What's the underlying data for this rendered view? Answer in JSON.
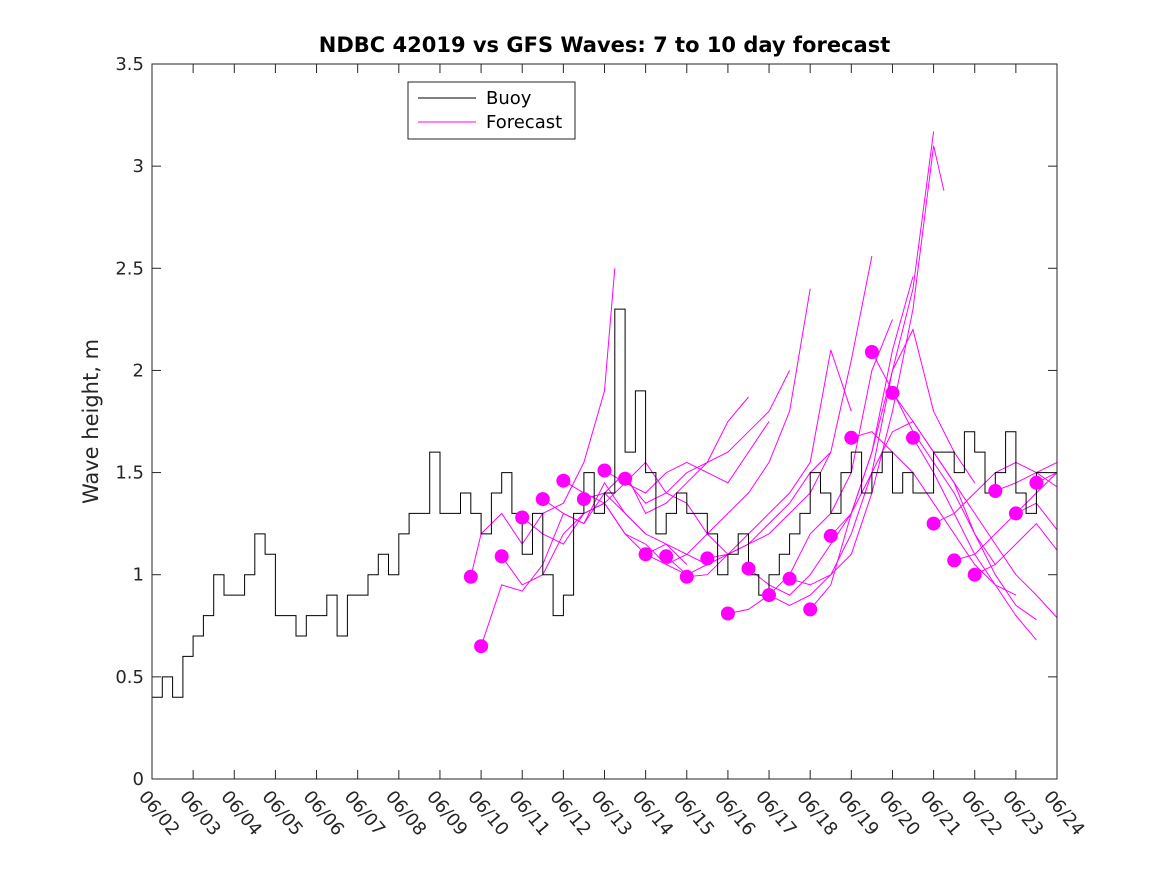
{
  "chart_data": {
    "type": "line",
    "title": "NDBC 42019 vs GFS Waves: 7 to 10 day forecast",
    "xlabel": "",
    "ylabel": "Wave height, m",
    "ylim": [
      0,
      3.5
    ],
    "yticks": [
      0,
      0.5,
      1,
      1.5,
      2,
      2.5,
      3,
      3.5
    ],
    "ytick_labels": [
      "0",
      "0.5",
      "1",
      "1.5",
      "2",
      "2.5",
      "3",
      "3.5"
    ],
    "xlim": [
      "06/02",
      "06/24"
    ],
    "xtick_labels": [
      "06/02",
      "06/03",
      "06/04",
      "06/05",
      "06/06",
      "06/07",
      "06/08",
      "06/09",
      "06/10",
      "06/11",
      "06/12",
      "06/13",
      "06/14",
      "06/15",
      "06/16",
      "06/17",
      "06/18",
      "06/19",
      "06/20",
      "06/21",
      "06/22",
      "06/23",
      "06/24"
    ],
    "grid": false,
    "legend": {
      "placement": "top-left",
      "entries": [
        "Buoy",
        "Forecast"
      ]
    },
    "colors": {
      "buoy": "#000000",
      "forecast": "#ff00ff"
    },
    "buoy": {
      "name": "Buoy",
      "x": [
        "06/02 00:00",
        "06/02 06:00",
        "06/02 12:00",
        "06/02 18:00",
        "06/03 00:00",
        "06/03 06:00",
        "06/03 12:00",
        "06/03 18:00",
        "06/04 00:00",
        "06/04 06:00",
        "06/04 12:00",
        "06/04 18:00",
        "06/05 00:00",
        "06/05 06:00",
        "06/05 12:00",
        "06/05 18:00",
        "06/06 00:00",
        "06/06 06:00",
        "06/06 12:00",
        "06/06 18:00",
        "06/07 00:00",
        "06/07 06:00",
        "06/07 12:00",
        "06/07 18:00",
        "06/08 00:00",
        "06/08 06:00",
        "06/08 12:00",
        "06/08 18:00",
        "06/09 00:00",
        "06/09 06:00",
        "06/09 12:00",
        "06/09 18:00",
        "06/10 00:00",
        "06/10 06:00",
        "06/10 12:00",
        "06/10 18:00",
        "06/11 00:00",
        "06/11 06:00",
        "06/11 12:00",
        "06/11 18:00",
        "06/12 00:00",
        "06/12 06:00",
        "06/12 12:00",
        "06/12 18:00",
        "06/13 00:00",
        "06/13 06:00",
        "06/13 12:00",
        "06/13 18:00",
        "06/14 00:00",
        "06/14 06:00",
        "06/14 12:00",
        "06/14 18:00",
        "06/15 00:00",
        "06/15 06:00",
        "06/15 12:00",
        "06/15 18:00",
        "06/16 00:00",
        "06/16 06:00",
        "06/16 12:00",
        "06/16 18:00",
        "06/17 00:00",
        "06/17 06:00",
        "06/17 12:00",
        "06/17 18:00",
        "06/18 00:00",
        "06/18 06:00",
        "06/18 12:00",
        "06/18 18:00",
        "06/19 00:00",
        "06/19 06:00",
        "06/19 12:00",
        "06/19 18:00",
        "06/20 00:00",
        "06/20 06:00",
        "06/20 12:00",
        "06/20 18:00",
        "06/21 00:00",
        "06/21 06:00",
        "06/21 12:00",
        "06/21 18:00",
        "06/22 00:00",
        "06/22 06:00",
        "06/22 12:00",
        "06/22 18:00",
        "06/23 00:00",
        "06/23 06:00",
        "06/23 12:00",
        "06/23 18:00",
        "06/24 00:00"
      ],
      "y": [
        0.4,
        0.5,
        0.4,
        0.6,
        0.7,
        0.8,
        1.0,
        0.9,
        0.9,
        1.0,
        1.2,
        1.1,
        0.8,
        0.8,
        0.7,
        0.8,
        0.8,
        0.9,
        0.7,
        0.9,
        0.9,
        1.0,
        1.1,
        1.0,
        1.2,
        1.3,
        1.3,
        1.6,
        1.3,
        1.3,
        1.4,
        1.3,
        1.2,
        1.4,
        1.5,
        1.3,
        1.1,
        1.3,
        1.0,
        0.8,
        0.9,
        1.3,
        1.5,
        1.3,
        1.4,
        2.3,
        1.6,
        1.9,
        1.5,
        1.2,
        1.3,
        1.4,
        1.3,
        1.3,
        1.2,
        1.0,
        1.1,
        1.2,
        1.0,
        0.9,
        1.0,
        1.1,
        1.2,
        1.3,
        1.5,
        1.4,
        1.3,
        1.5,
        1.6,
        1.4,
        1.5,
        1.6,
        1.4,
        1.5,
        1.4,
        1.4,
        1.6,
        1.6,
        1.5,
        1.7,
        1.6,
        1.4,
        1.5,
        1.7,
        1.4,
        1.3,
        1.5,
        1.5,
        1.5
      ]
    },
    "forecast_runs": [
      {
        "x": [
          "06/09 18:00",
          "06/10 00:00",
          "06/10 12:00",
          "06/11 00:00",
          "06/11 12:00",
          "06/12 00:00",
          "06/12 12:00",
          "06/13 00:00",
          "06/13 06:00"
        ],
        "y": [
          0.99,
          1.2,
          1.3,
          1.15,
          1.3,
          1.35,
          1.55,
          1.9,
          2.5
        ]
      },
      {
        "x": [
          "06/10 00:00",
          "06/10 12:00",
          "06/11 00:00",
          "06/11 12:00",
          "06/12 00:00",
          "06/12 12:00",
          "06/13 00:00",
          "06/13 12:00",
          "06/14 00:00"
        ],
        "y": [
          0.65,
          0.95,
          0.92,
          1.05,
          1.3,
          1.25,
          1.45,
          1.3,
          1.2
        ]
      },
      {
        "x": [
          "06/10 12:00",
          "06/11 00:00",
          "06/11 12:00",
          "06/12 00:00",
          "06/12 12:00",
          "06/13 00:00",
          "06/13 12:00",
          "06/14 00:00",
          "06/14 12:00",
          "06/15 00:00"
        ],
        "y": [
          1.09,
          0.95,
          1.0,
          1.2,
          1.3,
          1.35,
          1.2,
          1.1,
          1.15,
          1.05
        ]
      },
      {
        "x": [
          "06/11 00:00",
          "06/11 12:00",
          "06/12 00:00",
          "06/12 12:00",
          "06/13 00:00",
          "06/13 12:00",
          "06/14 00:00",
          "06/14 12:00",
          "06/15 00:00"
        ],
        "y": [
          1.28,
          1.2,
          1.15,
          1.3,
          1.35,
          1.2,
          1.15,
          1.05,
          1.0
        ]
      },
      {
        "x": [
          "06/11 12:00",
          "06/12 00:00",
          "06/12 12:00",
          "06/13 00:00",
          "06/13 12:00",
          "06/14 00:00",
          "06/14 12:00",
          "06/15 00:00",
          "06/15 12:00"
        ],
        "y": [
          1.37,
          1.3,
          1.25,
          1.4,
          1.3,
          1.2,
          1.15,
          1.1,
          1.05
        ]
      },
      {
        "x": [
          "06/12 00:00",
          "06/12 12:00",
          "06/13 00:00",
          "06/13 12:00",
          "06/14 00:00",
          "06/14 12:00",
          "06/15 00:00",
          "06/15 12:00",
          "06/16 00:00"
        ],
        "y": [
          1.46,
          1.4,
          1.35,
          1.45,
          1.55,
          1.4,
          1.35,
          1.2,
          1.1
        ]
      },
      {
        "x": [
          "06/12 12:00",
          "06/13 00:00",
          "06/13 12:00",
          "06/14 00:00",
          "06/14 12:00",
          "06/15 00:00",
          "06/15 12:00",
          "06/16 00:00",
          "06/16 12:00"
        ],
        "y": [
          1.37,
          1.4,
          1.5,
          1.3,
          1.35,
          1.45,
          1.55,
          1.75,
          1.87
        ]
      },
      {
        "x": [
          "06/13 00:00",
          "06/13 12:00",
          "06/14 00:00",
          "06/14 12:00",
          "06/15 00:00",
          "06/15 12:00",
          "06/16 00:00",
          "06/16 12:00",
          "06/17 00:00"
        ],
        "y": [
          1.51,
          1.45,
          1.4,
          1.5,
          1.55,
          1.5,
          1.45,
          1.6,
          1.75
        ]
      },
      {
        "x": [
          "06/13 12:00",
          "06/14 00:00",
          "06/14 12:00",
          "06/15 00:00",
          "06/15 12:00",
          "06/16 00:00",
          "06/16 12:00",
          "06/17 00:00",
          "06/17 12:00"
        ],
        "y": [
          1.47,
          1.35,
          1.4,
          1.5,
          1.55,
          1.6,
          1.7,
          1.8,
          2.0
        ]
      },
      {
        "x": [
          "06/14 00:00",
          "06/14 12:00",
          "06/15 00:00",
          "06/15 12:00",
          "06/16 00:00",
          "06/16 12:00",
          "06/17 00:00",
          "06/17 12:00",
          "06/18 00:00"
        ],
        "y": [
          1.1,
          1.05,
          1.1,
          1.2,
          1.3,
          1.4,
          1.55,
          1.8,
          2.4
        ]
      },
      {
        "x": [
          "06/14 12:00",
          "06/15 00:00",
          "06/15 12:00",
          "06/16 00:00",
          "06/16 12:00",
          "06/17 00:00",
          "06/17 12:00",
          "06/18 00:00",
          "06/18 12:00"
        ],
        "y": [
          1.09,
          1.0,
          1.05,
          1.1,
          1.15,
          1.25,
          1.35,
          1.5,
          1.6
        ]
      },
      {
        "x": [
          "06/15 00:00",
          "06/15 12:00",
          "06/16 00:00",
          "06/16 12:00",
          "06/17 00:00",
          "06/17 12:00",
          "06/18 00:00",
          "06/18 12:00",
          "06/19 00:00"
        ],
        "y": [
          0.99,
          1.0,
          1.1,
          1.2,
          1.3,
          1.4,
          1.55,
          2.1,
          1.8
        ]
      },
      {
        "x": [
          "06/15 12:00",
          "06/16 00:00",
          "06/16 12:00",
          "06/17 00:00",
          "06/17 12:00",
          "06/18 00:00",
          "06/18 12:00",
          "06/19 00:00",
          "06/19 12:00"
        ],
        "y": [
          1.08,
          1.1,
          1.15,
          1.2,
          1.3,
          1.4,
          1.6,
          2.05,
          2.56
        ]
      },
      {
        "x": [
          "06/16 00:00",
          "06/16 12:00",
          "06/17 00:00",
          "06/17 12:00",
          "06/18 00:00",
          "06/18 12:00",
          "06/19 00:00",
          "06/19 12:00",
          "06/20 00:00"
        ],
        "y": [
          0.81,
          0.83,
          0.9,
          1.0,
          1.2,
          1.3,
          1.5,
          2.0,
          2.25
        ]
      },
      {
        "x": [
          "06/16 12:00",
          "06/17 00:00",
          "06/17 12:00",
          "06/18 00:00",
          "06/18 12:00",
          "06/19 00:00",
          "06/19 12:00",
          "06/20 00:00",
          "06/20 12:00"
        ],
        "y": [
          1.03,
          0.95,
          0.9,
          1.0,
          1.15,
          1.3,
          1.6,
          2.1,
          2.46
        ]
      },
      {
        "x": [
          "06/17 00:00",
          "06/17 12:00",
          "06/18 00:00",
          "06/18 12:00",
          "06/19 00:00",
          "06/19 12:00",
          "06/20 00:00",
          "06/20 12:00",
          "06/21 00:00"
        ],
        "y": [
          0.9,
          0.85,
          0.9,
          1.0,
          1.2,
          1.5,
          2.0,
          2.4,
          3.17
        ]
      },
      {
        "x": [
          "06/17 12:00",
          "06/18 00:00",
          "06/18 12:00",
          "06/19 00:00",
          "06/19 12:00",
          "06/20 00:00",
          "06/20 12:00",
          "06/21 00:00",
          "06/21 06:00"
        ],
        "y": [
          0.98,
          0.95,
          1.0,
          1.1,
          1.4,
          1.8,
          2.3,
          3.1,
          2.88
        ]
      },
      {
        "x": [
          "06/18 00:00",
          "06/18 12:00",
          "06/19 00:00",
          "06/19 12:00",
          "06/20 00:00",
          "06/20 12:00",
          "06/21 00:00",
          "06/21 12:00",
          "06/22 00:00"
        ],
        "y": [
          0.83,
          0.95,
          1.3,
          1.6,
          2.0,
          2.2,
          1.8,
          1.6,
          1.45
        ]
      },
      {
        "x": [
          "06/18 12:00",
          "06/19 00:00",
          "06/19 12:00",
          "06/20 00:00",
          "06/20 12:00",
          "06/21 00:00",
          "06/21 12:00",
          "06/22 00:00",
          "06/22 12:00"
        ],
        "y": [
          1.19,
          1.3,
          1.5,
          1.7,
          1.75,
          1.6,
          1.45,
          1.2,
          1.05
        ]
      },
      {
        "x": [
          "06/19 00:00",
          "06/19 12:00",
          "06/20 00:00",
          "06/20 12:00",
          "06/21 00:00",
          "06/21 12:00",
          "06/22 00:00",
          "06/22 12:00",
          "06/23 00:00"
        ],
        "y": [
          1.67,
          1.7,
          1.6,
          1.5,
          1.35,
          1.2,
          1.05,
          0.95,
          0.9
        ]
      },
      {
        "x": [
          "06/19 12:00",
          "06/20 00:00",
          "06/20 12:00",
          "06/21 00:00",
          "06/21 12:00",
          "06/22 00:00",
          "06/22 12:00",
          "06/23 00:00",
          "06/23 12:00"
        ],
        "y": [
          2.09,
          1.9,
          1.7,
          1.55,
          1.4,
          1.2,
          1.0,
          0.85,
          0.78
        ]
      },
      {
        "x": [
          "06/20 00:00",
          "06/20 12:00",
          "06/21 00:00",
          "06/21 12:00",
          "06/22 00:00",
          "06/22 12:00",
          "06/23 00:00",
          "06/23 12:00",
          "06/24 00:00"
        ],
        "y": [
          1.89,
          1.75,
          1.6,
          1.45,
          1.3,
          1.15,
          1.0,
          0.9,
          0.79
        ]
      },
      {
        "x": [
          "06/20 12:00",
          "06/21 00:00",
          "06/21 12:00",
          "06/22 00:00",
          "06/22 12:00",
          "06/23 00:00",
          "06/23 12:00"
        ],
        "y": [
          1.67,
          1.5,
          1.3,
          1.1,
          0.95,
          0.8,
          0.68
        ]
      },
      {
        "x": [
          "06/21 00:00",
          "06/21 12:00",
          "06/22 00:00",
          "06/22 12:00",
          "06/23 00:00",
          "06/23 12:00",
          "06/24 00:00"
        ],
        "y": [
          1.25,
          1.3,
          1.4,
          1.5,
          1.55,
          1.5,
          1.43
        ]
      },
      {
        "x": [
          "06/21 12:00",
          "06/22 00:00",
          "06/22 12:00",
          "06/23 00:00",
          "06/23 12:00",
          "06/24 00:00"
        ],
        "y": [
          1.07,
          1.1,
          1.2,
          1.3,
          1.35,
          1.22
        ]
      },
      {
        "x": [
          "06/22 00:00",
          "06/22 12:00",
          "06/23 00:00",
          "06/23 12:00",
          "06/24 00:00"
        ],
        "y": [
          1.0,
          1.05,
          1.15,
          1.25,
          1.12
        ]
      },
      {
        "x": [
          "06/22 12:00",
          "06/23 00:00",
          "06/23 12:00",
          "06/24 00:00"
        ],
        "y": [
          1.41,
          1.45,
          1.5,
          1.55
        ]
      },
      {
        "x": [
          "06/23 00:00",
          "06/23 12:00",
          "06/24 00:00"
        ],
        "y": [
          1.3,
          1.4,
          1.5
        ]
      },
      {
        "x": [
          "06/23 12:00",
          "06/24 00:00"
        ],
        "y": [
          1.45,
          1.5
        ]
      }
    ],
    "forecast_points": {
      "name": "Forecast",
      "x": [
        "06/09 18:00",
        "06/10 00:00",
        "06/10 12:00",
        "06/11 00:00",
        "06/11 12:00",
        "06/12 00:00",
        "06/12 12:00",
        "06/13 00:00",
        "06/13 12:00",
        "06/14 00:00",
        "06/14 12:00",
        "06/15 00:00",
        "06/15 12:00",
        "06/16 00:00",
        "06/16 12:00",
        "06/17 00:00",
        "06/17 12:00",
        "06/18 00:00",
        "06/18 12:00",
        "06/19 00:00",
        "06/19 12:00",
        "06/20 00:00",
        "06/20 12:00",
        "06/21 00:00",
        "06/21 12:00",
        "06/22 00:00",
        "06/22 12:00",
        "06/23 00:00",
        "06/23 12:00"
      ],
      "y": [
        0.99,
        0.65,
        1.09,
        1.28,
        1.37,
        1.46,
        1.37,
        1.51,
        1.47,
        1.1,
        1.09,
        0.99,
        1.08,
        0.81,
        1.03,
        0.9,
        0.98,
        0.83,
        1.19,
        1.67,
        2.09,
        1.89,
        1.67,
        1.25,
        1.07,
        1.0,
        1.41,
        1.3,
        1.45
      ]
    }
  }
}
